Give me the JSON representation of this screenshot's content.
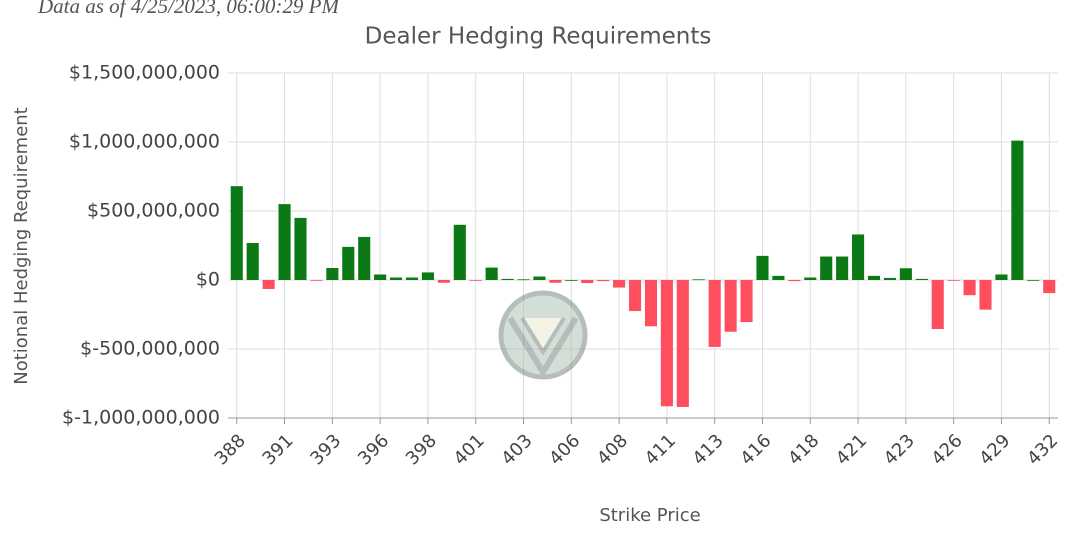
{
  "chart_data": {
    "type": "bar",
    "title": "Dealer Hedging Requirements",
    "subtitle": "Data as of 4/25/2023, 06:00:29 PM",
    "x_label": "Strike Price",
    "y_label": "Notional Hedging Requirement",
    "categories": [
      "388",
      null,
      null,
      "391",
      null,
      null,
      "393",
      null,
      null,
      "396",
      null,
      null,
      "398",
      null,
      null,
      "401",
      null,
      null,
      "403",
      null,
      null,
      "406",
      null,
      null,
      "408",
      null,
      null,
      "411",
      null,
      null,
      "413",
      null,
      null,
      "416",
      null,
      null,
      "418",
      null,
      null,
      "421",
      null,
      null,
      "423",
      null,
      null,
      "426",
      null,
      null,
      "429",
      null,
      null,
      "432"
    ],
    "values": [
      680000000,
      268000000,
      -65000000,
      550000000,
      450000000,
      -2000000,
      87000000,
      240000000,
      312000000,
      40000000,
      18000000,
      18000000,
      55000000,
      -20000000,
      400000000,
      -3000000,
      90000000,
      8000000,
      5000000,
      25000000,
      -20000000,
      0,
      -22000000,
      -8000000,
      -55000000,
      -225000000,
      -335000000,
      -915000000,
      -920000000,
      5000000,
      -485000000,
      -375000000,
      -305000000,
      175000000,
      30000000,
      -8000000,
      18000000,
      170000000,
      170000000,
      330000000,
      30000000,
      15000000,
      85000000,
      8000000,
      -355000000,
      -5000000,
      -110000000,
      -215000000,
      40000000,
      1010000000,
      0,
      -95000000
    ],
    "positive_color": "#0b7a16",
    "negative_color": "#ff4f5e",
    "ylim": [
      -1000000000,
      1500000000
    ],
    "yticks": [
      {
        "value": -1000000000,
        "label": "$-1,000,000,000"
      },
      {
        "value": -500000000,
        "label": "$-500,000,000"
      },
      {
        "value": 0,
        "label": "$0"
      },
      {
        "value": 500000000,
        "label": "$500,000,000"
      },
      {
        "value": 1000000000,
        "label": "$1,000,000,000"
      },
      {
        "value": 1500000000,
        "label": "$1,500,000,000"
      }
    ],
    "grid": true
  }
}
